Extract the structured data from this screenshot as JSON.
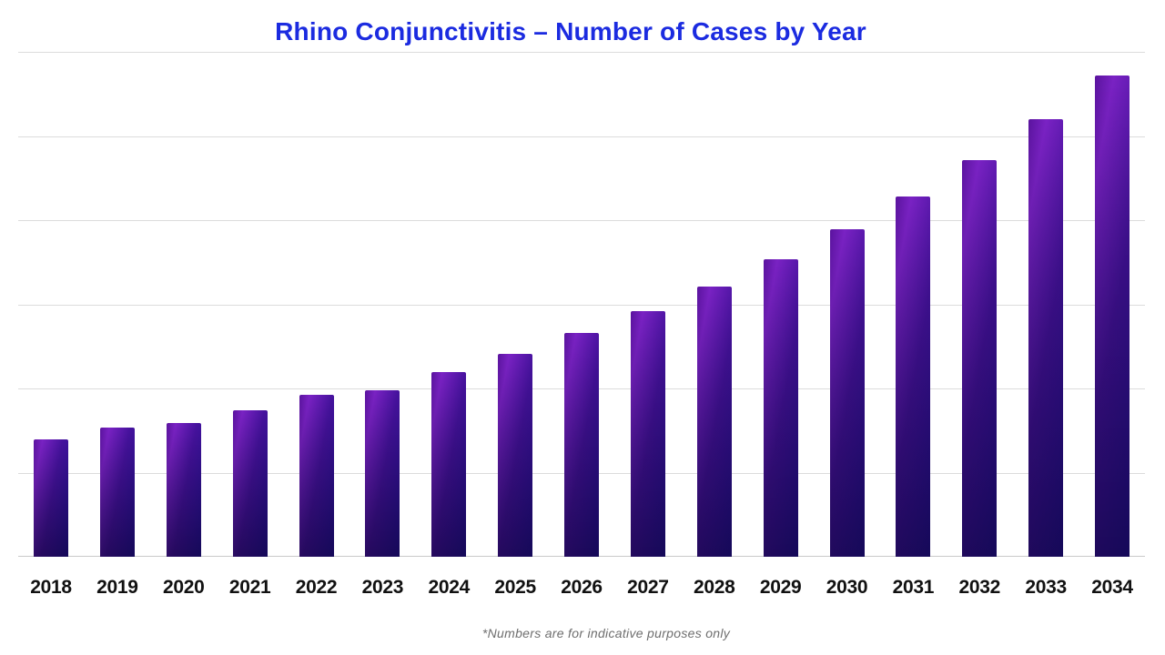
{
  "title": "Rhino Conjunctivitis – Number of Cases by Year",
  "footnote": "*Numbers are for indicative purposes only",
  "chart_data": {
    "type": "bar",
    "title": "Rhino Conjunctivitis – Number of Cases by Year",
    "xlabel": "",
    "ylabel": "",
    "categories": [
      "2018",
      "2019",
      "2020",
      "2021",
      "2022",
      "2023",
      "2024",
      "2025",
      "2026",
      "2027",
      "2028",
      "2029",
      "2030",
      "2031",
      "2032",
      "2033",
      "2034"
    ],
    "values": [
      139,
      153,
      159,
      174,
      192,
      198,
      219,
      241,
      266,
      292,
      321,
      354,
      389,
      428,
      471,
      520,
      572
    ],
    "ylim": [
      0,
      600
    ],
    "gridline_step": 100,
    "grid": "horizontal-only",
    "y_tick_labels_visible": false,
    "legend": "none",
    "colors": {
      "title": "#1b2be0",
      "gridline": "#dcdcdc",
      "axis_line": "#c9c9c9",
      "x_labels": "#111111",
      "footnote": "#6e6e6e",
      "bar_gradient": [
        "#5a139e",
        "#7a22c4",
        "#46129e",
        "#251094"
      ],
      "bar_bottom_shade": "#120a52"
    }
  }
}
